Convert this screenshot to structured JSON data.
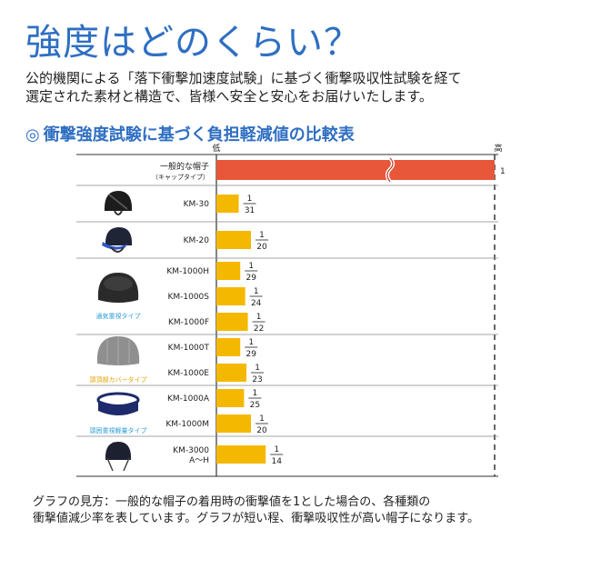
{
  "title": "強度はどのくらい？",
  "intro": {
    "line1": "公的機関による「落下衝撃加速度試験」に基づく衝撃吸収性試験を経て",
    "line2": "選定された素材と構造で、皆様へ安全と安心をお届けいたします。"
  },
  "chart_title_mark": "◎",
  "chart_title": "衝撃強度試験に基づく負担軽減値の比較表",
  "footnote": {
    "line1": "グラフの見方：一般的な帽子の着用時の衝撃値を1とした場合の、各種類の",
    "line2": "衝撃値減少率を表しています。グラフが短い程、衝撃吸収性が高い帽子になります。"
  },
  "colors": {
    "accent": "#2f6fc2",
    "reference_bar": "#e8573a",
    "model_bar": "#f5b800",
    "group_label": "#2d9fd6",
    "group_label_alt": "#e8a000"
  },
  "chart_data": {
    "type": "bar",
    "orientation": "horizontal",
    "axis_low_label": "低",
    "axis_high_label": "高",
    "xlim": [
      0,
      1
    ],
    "x_axis_break": true,
    "reference": {
      "category_line1": "一般的な帽子",
      "category_line2": "（キャップタイプ）",
      "value": 1,
      "label": "1"
    },
    "groups": [
      {
        "image": "cap-helmet-icon",
        "items": [
          {
            "category": "KM-30",
            "value": 0.0323,
            "num": "1",
            "den": "31"
          }
        ]
      },
      {
        "image": "cap-helmet-visor-icon",
        "items": [
          {
            "category": "KM-20",
            "value": 0.05,
            "num": "1",
            "den": "20"
          }
        ]
      },
      {
        "image": "breathable-cap-icon",
        "group_label": "通気重視タイプ",
        "items": [
          {
            "category": "KM-1000H",
            "value": 0.0345,
            "num": "1",
            "den": "29"
          },
          {
            "category": "KM-1000S",
            "value": 0.0417,
            "num": "1",
            "den": "24"
          },
          {
            "category": "KM-1000F",
            "value": 0.0455,
            "num": "1",
            "den": "22"
          }
        ]
      },
      {
        "image": "crown-cover-cap-icon",
        "group_label": "頭頂部カバータイプ",
        "items": [
          {
            "category": "KM-1000T",
            "value": 0.0345,
            "num": "1",
            "den": "29"
          },
          {
            "category": "KM-1000E",
            "value": 0.0435,
            "num": "1",
            "den": "23"
          }
        ]
      },
      {
        "image": "headband-icon",
        "group_label": "頭囲重視軽量タイプ",
        "items": [
          {
            "category": "KM-1000A",
            "value": 0.04,
            "num": "1",
            "den": "25"
          },
          {
            "category": "KM-1000M",
            "value": 0.05,
            "num": "1",
            "den": "20"
          }
        ]
      },
      {
        "image": "cap-helmet-strap-icon",
        "items": [
          {
            "category": "KM-3000",
            "category_line2": "A～H",
            "value": 0.0714,
            "num": "1",
            "den": "14"
          }
        ]
      }
    ]
  }
}
